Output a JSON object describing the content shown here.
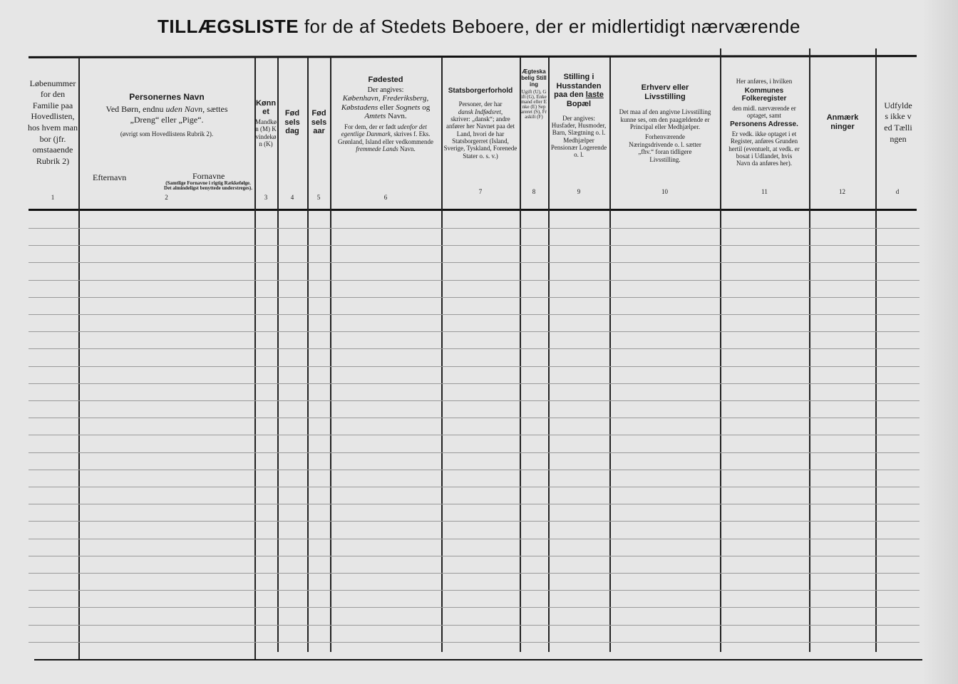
{
  "title": {
    "bold": "TILLÆGSLISTE",
    "rest": " for de af Stedets Beboere, der er midlertidigt nærværende"
  },
  "columns": [
    {
      "num": "1",
      "text": "Løbenummer for den Familie paa Hovedlisten, hos hvem man bor (jfr. omstaaende Rubrik 2)"
    },
    {
      "num": "2",
      "heading": "Personernes Navn",
      "line1_a": "Ved Børn, endnu ",
      "line1_i": "uden Navn,",
      "line1_b": " sættes",
      "line2": "„Dreng“ eller „Pige“.",
      "note": "(øvrigt som Hovedlistens Rubrik 2).",
      "sub_left": "Efternavn",
      "sub_right": "Fornavne",
      "sub_right_note": "(Samtlige Fornavne i rigtig Rækkefølge. Det almindeligst benyttede understreges)."
    },
    {
      "num": "3",
      "heading": "Kønnet",
      "text": "Mandkøn (M) Kvindekøn (K)"
    },
    {
      "num": "4",
      "heading": "Fødselsdag"
    },
    {
      "num": "5",
      "heading": "Fødselsaar"
    },
    {
      "num": "6",
      "heading": "Fødested",
      "sub": "Der angives:",
      "italic1": "København, Frederiksberg, Købstadens",
      "mid1": " eller ",
      "italic2": "Sognets",
      "mid2": " og ",
      "italic3": "Amtets",
      "mid3": " Navn.",
      "p2a": "For dem, der er født ",
      "p2i": "udenfor det egentlige Danmark,",
      "p2b": " skrives f. Eks.",
      "p3a": "Grønland, Island eller vedkommende ",
      "p3i": "fremmede Lands",
      "p3b": " Navn."
    },
    {
      "num": "7",
      "heading": "Statsborgerforhold",
      "t1": "Personer, der har",
      "t2": "dansk Indfødsret,",
      "t3": "skriver: „dansk“; andre anfører her Navnet paa det Land, hvori de har Statsborgerret (Island, Sverige, Tyskland, Forenede Stater o. s. v.)"
    },
    {
      "num": "8",
      "heading": "Ægteskabelig Stilling",
      "text": "Ugift (U), Gift (G), Enkemand eller Enke (E) Separeret (S), Fraskilt (F)"
    },
    {
      "num": "9",
      "heading_a": "Stilling i Husstanden paa den ",
      "heading_u": "laste",
      "heading_b": " Bopæl",
      "sub": "Der angives:",
      "text": "Husfader, Husmoder, Barn, Slægtning o. l. Medhjælper Pensionær Logerende o. l."
    },
    {
      "num": "10",
      "heading": "Erhverv eller Livsstilling",
      "p1": "Det maa af den angivne Livsstilling kunne ses, om den paagældende er Principal eller Medhjælper.",
      "p2": "Forhenværende Næringsdrivende o. l. sætter „fhv.“ foran tidligere Livsstilling."
    },
    {
      "num": "11",
      "pre": "Her anføres, i hvilken",
      "heading": "Kommunes Folkeregister",
      "mid": "den midl. nærværende er optaget, samt",
      "heading2": "Personens Adresse.",
      "p2": "Er vedk. ikke optaget i et Register, anføres Grunden hertil (eventuelt, at vedk. er bosat i Udlandet, hvis Navn da anføres her)."
    },
    {
      "num": "12",
      "heading": "Anmærkninger"
    },
    {
      "num": "d",
      "text": "Udfyldes ikke ved Tællingen"
    }
  ]
}
